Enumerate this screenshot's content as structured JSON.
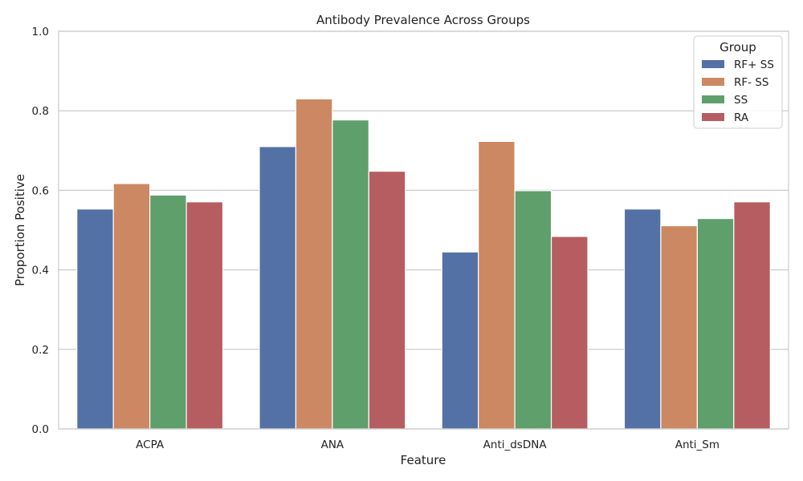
{
  "chart_data": {
    "type": "bar",
    "title": "Antibody Prevalence Across Groups",
    "xlabel": "Feature",
    "ylabel": "Proportion Positive",
    "categories": [
      "ACPA",
      "ANA",
      "Anti_dsDNA",
      "Anti_Sm"
    ],
    "ylim": [
      0,
      1.0
    ],
    "yticks": [
      "0.0",
      "0.2",
      "0.4",
      "0.6",
      "0.8",
      "1.0"
    ],
    "grid": true,
    "legend": {
      "title": "Group",
      "placement": "top-right"
    },
    "series": [
      {
        "name": "RF+ SS",
        "color": "#5471a5",
        "values": [
          0.553,
          0.71,
          0.445,
          0.553
        ]
      },
      {
        "name": "RF- SS",
        "color": "#cc8862",
        "values": [
          0.617,
          0.83,
          0.723,
          0.511
        ]
      },
      {
        "name": "SS",
        "color": "#5e9f6c",
        "values": [
          0.588,
          0.777,
          0.599,
          0.529
        ]
      },
      {
        "name": "RA",
        "color": "#b55d60",
        "values": [
          0.571,
          0.648,
          0.484,
          0.571
        ]
      }
    ]
  }
}
